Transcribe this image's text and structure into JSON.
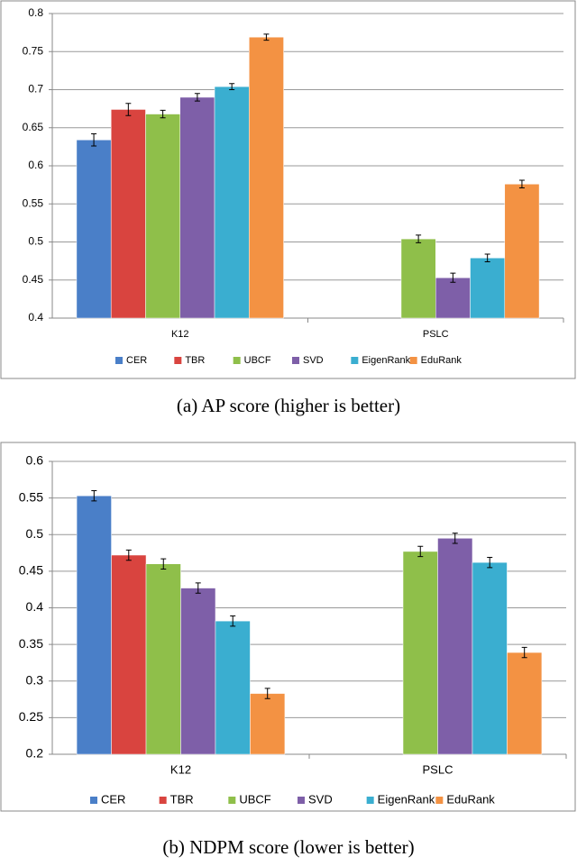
{
  "chart_data": [
    {
      "type": "bar",
      "caption": "(a)  AP score (higher is better)",
      "categories": [
        "K12",
        "PSLC"
      ],
      "series": [
        {
          "name": "CER",
          "color": "#4a7fc8",
          "values": [
            0.634,
            null
          ],
          "errors": [
            0.008,
            null
          ]
        },
        {
          "name": "TBR",
          "color": "#d9443f",
          "values": [
            0.674,
            null
          ],
          "errors": [
            0.008,
            null
          ]
        },
        {
          "name": "UBCF",
          "color": "#8fbf4a",
          "values": [
            0.668,
            0.504
          ],
          "errors": [
            0.005,
            0.005
          ]
        },
        {
          "name": "SVD",
          "color": "#7e5fa8",
          "values": [
            0.69,
            0.453
          ],
          "errors": [
            0.005,
            0.006
          ]
        },
        {
          "name": "EigenRank",
          "color": "#3aaed0",
          "values": [
            0.704,
            0.479
          ],
          "errors": [
            0.004,
            0.005
          ]
        },
        {
          "name": "EduRank",
          "color": "#f39243",
          "values": [
            0.769,
            0.576
          ],
          "errors": [
            0.004,
            0.005
          ]
        }
      ],
      "ylim": [
        0.4,
        0.8
      ],
      "yticks": [
        0.4,
        0.45,
        0.5,
        0.55,
        0.6,
        0.65,
        0.7,
        0.75,
        0.8
      ],
      "grid": true
    },
    {
      "type": "bar",
      "caption": "(b)  NDPM score (lower is better)",
      "categories": [
        "K12",
        "PSLC"
      ],
      "series": [
        {
          "name": "CER",
          "color": "#4a7fc8",
          "values": [
            0.553,
            null
          ],
          "errors": [
            0.007,
            null
          ]
        },
        {
          "name": "TBR",
          "color": "#d9443f",
          "values": [
            0.472,
            null
          ],
          "errors": [
            0.007,
            null
          ]
        },
        {
          "name": "UBCF",
          "color": "#8fbf4a",
          "values": [
            0.46,
            0.477
          ],
          "errors": [
            0.007,
            0.007
          ]
        },
        {
          "name": "SVD",
          "color": "#7e5fa8",
          "values": [
            0.427,
            0.495
          ],
          "errors": [
            0.007,
            0.007
          ]
        },
        {
          "name": "EigenRank",
          "color": "#3aaed0",
          "values": [
            0.382,
            0.462
          ],
          "errors": [
            0.007,
            0.007
          ]
        },
        {
          "name": "EduRank",
          "color": "#f39243",
          "values": [
            0.283,
            0.339
          ],
          "errors": [
            0.007,
            0.007
          ]
        }
      ],
      "ylim": [
        0.2,
        0.6
      ],
      "yticks": [
        0.2,
        0.25,
        0.3,
        0.35,
        0.4,
        0.45,
        0.5,
        0.55,
        0.6
      ],
      "grid": true
    }
  ]
}
